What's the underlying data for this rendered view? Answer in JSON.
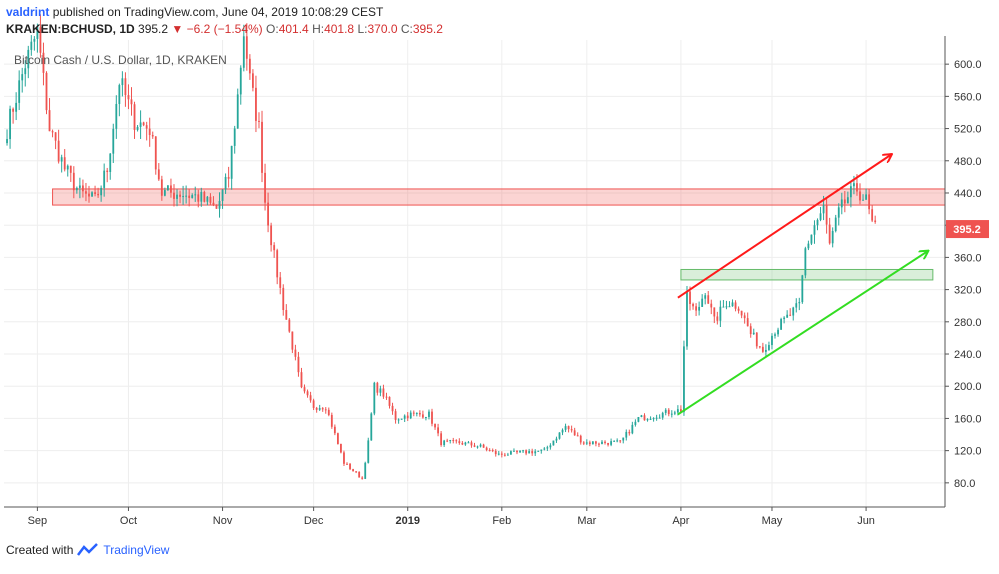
{
  "header": {
    "author": "valdrint",
    "published": "published on TradingView.com, June 04, 2019 10:08:29 CEST",
    "symbol": "KRAKEN:BCHUSD, 1D",
    "last": "395.2",
    "change": "−6.2 (−1.54%)",
    "o_label": "O:",
    "o_val": "401.4",
    "h_label": "H:",
    "h_val": "401.8",
    "l_label": "L:",
    "l_val": "370.0",
    "c_label": "C:",
    "c_val": "395.2"
  },
  "chart_data": {
    "type": "candlestick",
    "title": "Bitcoin Cash / U.S. Dollar, 1D, KRAKEN",
    "price_label": "395.2",
    "y_ticks": [
      80,
      120,
      160,
      200,
      240,
      280,
      320,
      360,
      400,
      440,
      480,
      520,
      560,
      600
    ],
    "x_ticks": [
      "Sep",
      "Oct",
      "Nov",
      "Dec",
      "2019",
      "Feb",
      "Mar",
      "Apr",
      "May",
      "Jun"
    ],
    "ylim": [
      50,
      630
    ],
    "xlim": [
      "2018-08-21",
      "2019-06-27"
    ],
    "up_color": "#26a69a",
    "down_color": "#ef5350",
    "key_points": [
      {
        "date": "2018-08-22",
        "close": 520
      },
      {
        "date": "2018-08-28",
        "close": 600
      },
      {
        "date": "2018-09-01",
        "close": 640
      },
      {
        "date": "2018-09-05",
        "close": 520
      },
      {
        "date": "2018-09-10",
        "close": 470
      },
      {
        "date": "2018-09-15",
        "close": 440
      },
      {
        "date": "2018-09-20",
        "close": 430
      },
      {
        "date": "2018-09-24",
        "close": 470
      },
      {
        "date": "2018-09-28",
        "close": 580
      },
      {
        "date": "2018-10-03",
        "close": 530
      },
      {
        "date": "2018-10-08",
        "close": 520
      },
      {
        "date": "2018-10-12",
        "close": 440
      },
      {
        "date": "2018-10-18",
        "close": 440
      },
      {
        "date": "2018-10-24",
        "close": 435
      },
      {
        "date": "2018-10-30",
        "close": 420
      },
      {
        "date": "2018-11-03",
        "close": 460
      },
      {
        "date": "2018-11-06",
        "close": 560
      },
      {
        "date": "2018-11-08",
        "close": 640
      },
      {
        "date": "2018-11-10",
        "close": 580
      },
      {
        "date": "2018-11-13",
        "close": 520
      },
      {
        "date": "2018-11-15",
        "close": 430
      },
      {
        "date": "2018-11-18",
        "close": 360
      },
      {
        "date": "2018-11-21",
        "close": 300
      },
      {
        "date": "2018-11-24",
        "close": 250
      },
      {
        "date": "2018-11-27",
        "close": 195
      },
      {
        "date": "2018-12-01",
        "close": 175
      },
      {
        "date": "2018-12-05",
        "close": 175
      },
      {
        "date": "2018-12-08",
        "close": 140
      },
      {
        "date": "2018-12-11",
        "close": 105
      },
      {
        "date": "2018-12-14",
        "close": 95
      },
      {
        "date": "2018-12-17",
        "close": 85
      },
      {
        "date": "2018-12-19",
        "close": 130
      },
      {
        "date": "2018-12-21",
        "close": 200
      },
      {
        "date": "2018-12-24",
        "close": 190
      },
      {
        "date": "2018-12-28",
        "close": 160
      },
      {
        "date": "2019-01-02",
        "close": 165
      },
      {
        "date": "2019-01-08",
        "close": 165
      },
      {
        "date": "2019-01-12",
        "close": 130
      },
      {
        "date": "2019-01-18",
        "close": 130
      },
      {
        "date": "2019-01-25",
        "close": 125
      },
      {
        "date": "2019-01-31",
        "close": 115
      },
      {
        "date": "2019-02-08",
        "close": 118
      },
      {
        "date": "2019-02-15",
        "close": 120
      },
      {
        "date": "2019-02-22",
        "close": 150
      },
      {
        "date": "2019-02-28",
        "close": 130
      },
      {
        "date": "2019-03-05",
        "close": 130
      },
      {
        "date": "2019-03-12",
        "close": 130
      },
      {
        "date": "2019-03-18",
        "close": 160
      },
      {
        "date": "2019-03-25",
        "close": 165
      },
      {
        "date": "2019-03-30",
        "close": 170
      },
      {
        "date": "2019-04-01",
        "close": 170
      },
      {
        "date": "2019-04-02",
        "close": 250
      },
      {
        "date": "2019-04-03",
        "close": 310
      },
      {
        "date": "2019-04-06",
        "close": 290
      },
      {
        "date": "2019-04-09",
        "close": 320
      },
      {
        "date": "2019-04-12",
        "close": 280
      },
      {
        "date": "2019-04-16",
        "close": 305
      },
      {
        "date": "2019-04-20",
        "close": 300
      },
      {
        "date": "2019-04-24",
        "close": 265
      },
      {
        "date": "2019-04-28",
        "close": 245
      },
      {
        "date": "2019-05-02",
        "close": 270
      },
      {
        "date": "2019-05-06",
        "close": 285
      },
      {
        "date": "2019-05-10",
        "close": 300
      },
      {
        "date": "2019-05-12",
        "close": 370
      },
      {
        "date": "2019-05-15",
        "close": 400
      },
      {
        "date": "2019-05-18",
        "close": 420
      },
      {
        "date": "2019-05-20",
        "close": 375
      },
      {
        "date": "2019-05-23",
        "close": 415
      },
      {
        "date": "2019-05-26",
        "close": 435
      },
      {
        "date": "2019-05-29",
        "close": 445
      },
      {
        "date": "2019-06-01",
        "close": 430
      },
      {
        "date": "2019-06-03",
        "close": 401
      },
      {
        "date": "2019-06-04",
        "close": 395
      }
    ],
    "zones": [
      {
        "name": "resistance-zone",
        "from": "2018-09-06",
        "to": "2019-06-27",
        "low": 425,
        "high": 445,
        "color": "#ef5350"
      },
      {
        "name": "support-zone",
        "from": "2019-04-01",
        "to": "2019-06-23",
        "low": 332,
        "high": 345,
        "color": "#66bb6a"
      }
    ],
    "trend_lines": [
      {
        "name": "upper-trend-arrow",
        "from": [
          "2019-03-31",
          310
        ],
        "to": [
          "2019-06-09",
          487
        ],
        "color": "#ff1a1a"
      },
      {
        "name": "lower-trend-arrow",
        "from": [
          "2019-03-31",
          165
        ],
        "to": [
          "2019-06-21",
          367
        ],
        "color": "#33dd22"
      }
    ]
  },
  "footer": {
    "created_with": "Created with",
    "brand": "TradingView"
  }
}
